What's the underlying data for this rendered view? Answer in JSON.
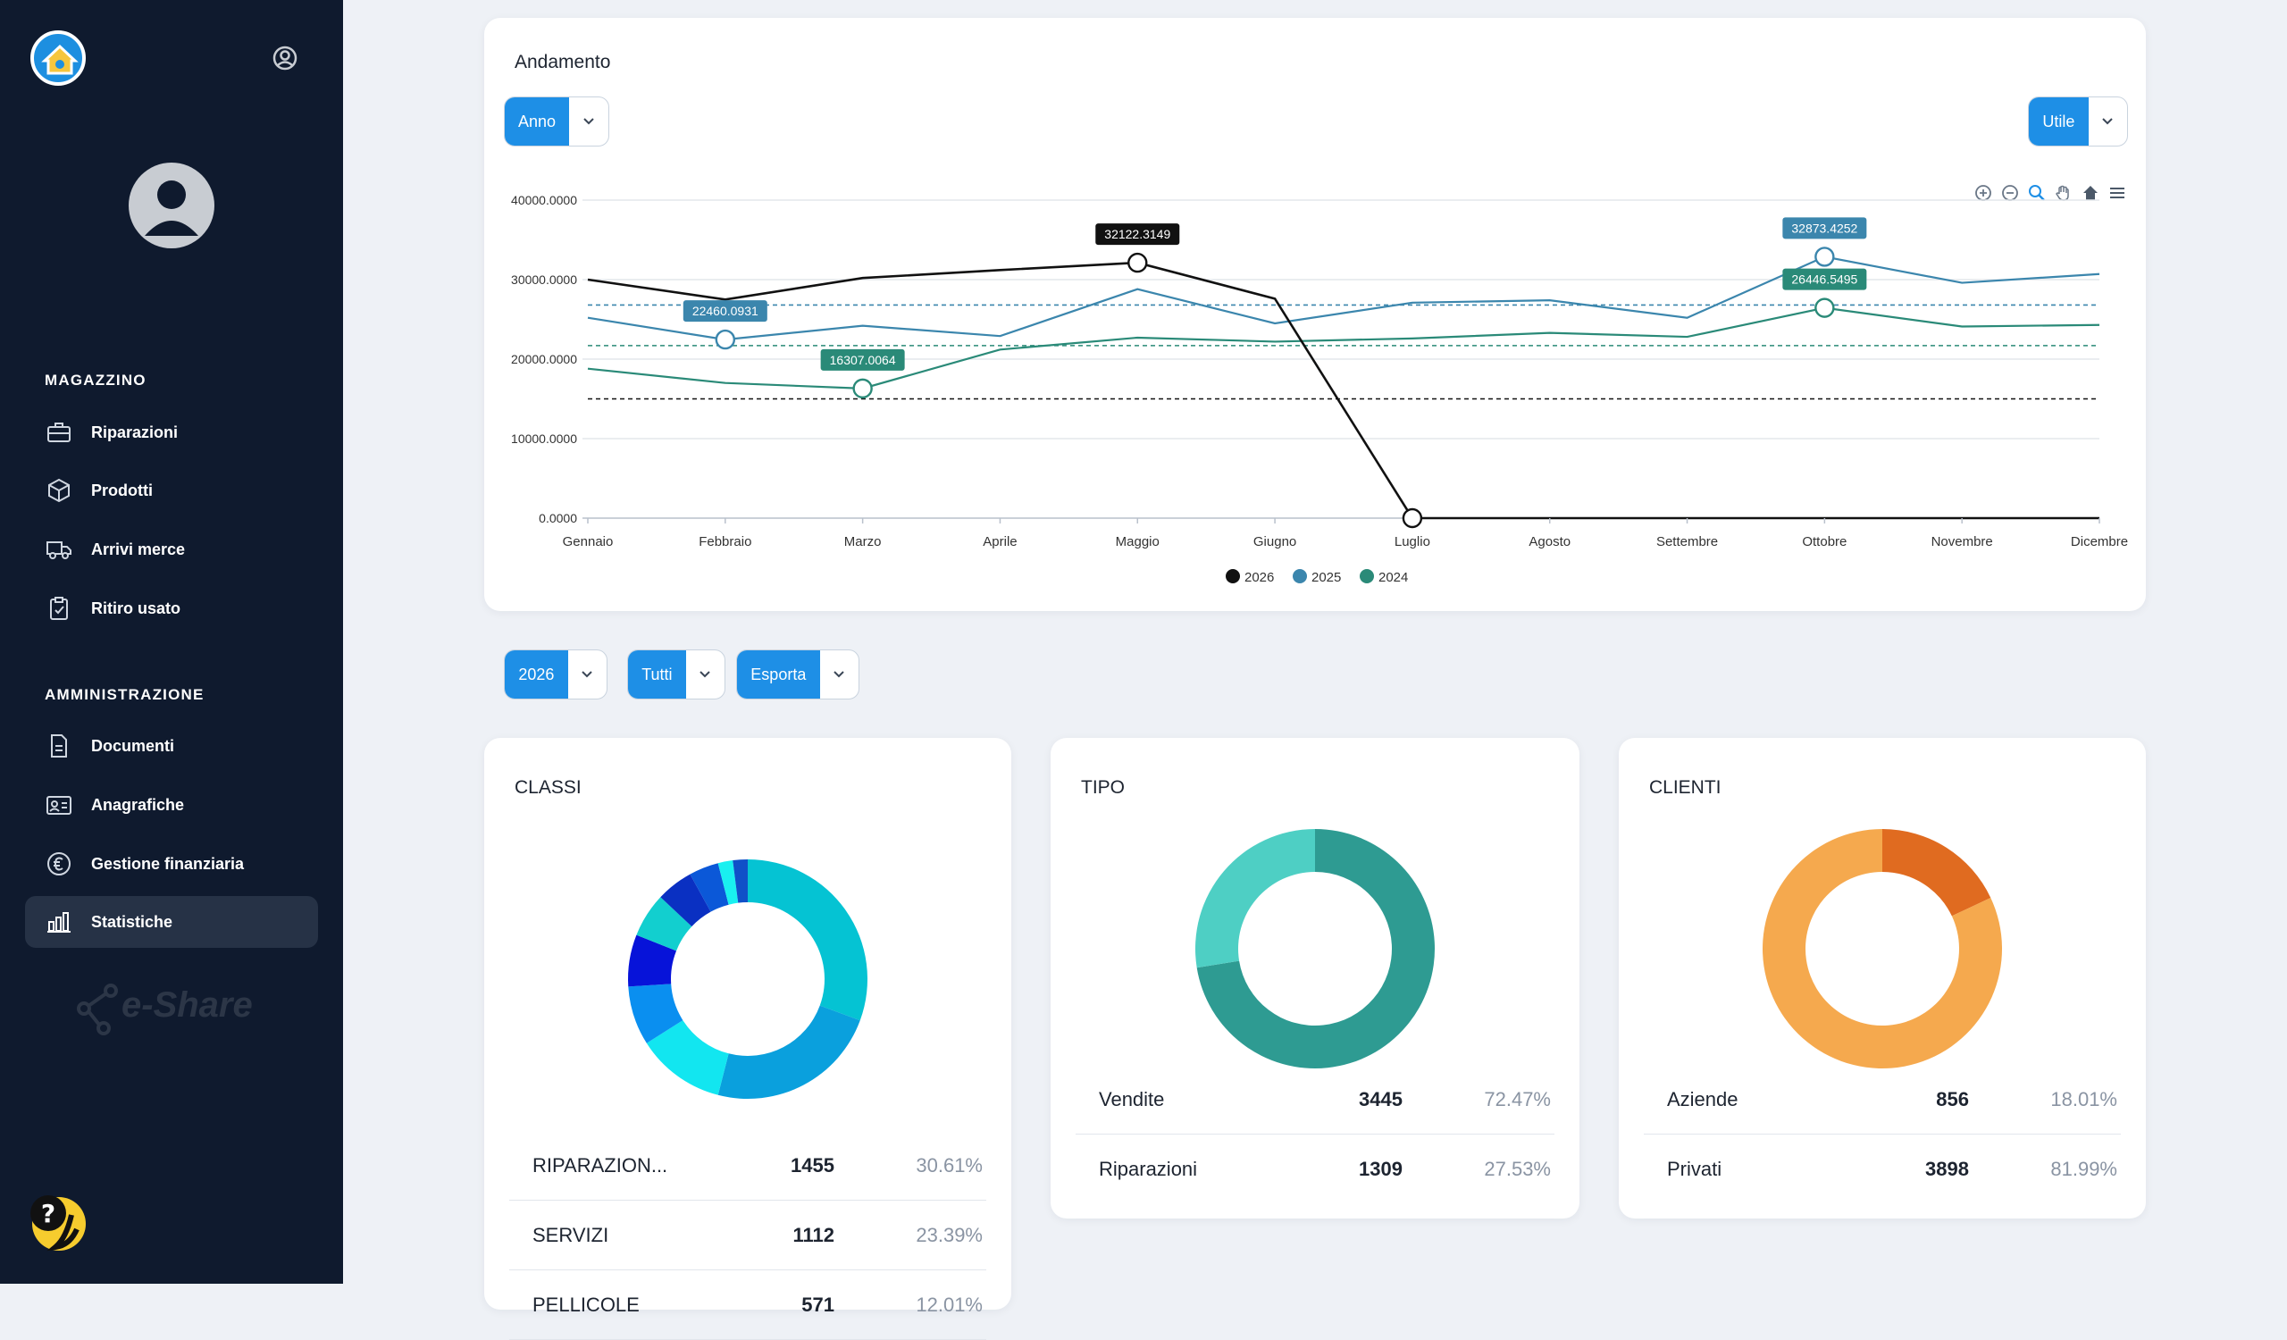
{
  "sidebar": {
    "section_magazzino": "MAGAZZINO",
    "section_amministrazione": "AMMINISTRAZIONE",
    "items": [
      {
        "label": "Riparazioni",
        "icon": "briefcase-icon"
      },
      {
        "label": "Prodotti",
        "icon": "box-icon"
      },
      {
        "label": "Arrivi merce",
        "icon": "truck-icon"
      },
      {
        "label": "Ritiro usato",
        "icon": "clipboard-icon"
      },
      {
        "label": "Documenti",
        "icon": "document-icon"
      },
      {
        "label": "Anagrafiche",
        "icon": "id-card-icon"
      },
      {
        "label": "Gestione finanziaria",
        "icon": "euro-icon"
      },
      {
        "label": "Statistiche",
        "icon": "bar-chart-icon",
        "active": true
      }
    ],
    "brand": "e-Share"
  },
  "trend": {
    "title": "Andamento",
    "period_button": "Anno",
    "metric_button": "Utile"
  },
  "filters": {
    "year": "2026",
    "scope": "Tutti",
    "export": "Esporta"
  },
  "classi": {
    "title": "CLASSI",
    "rows": [
      {
        "name": "RIPARAZION...",
        "count": "1455",
        "pct": "30.61%"
      },
      {
        "name": "SERVIZI",
        "count": "1112",
        "pct": "23.39%"
      },
      {
        "name": "PELLICOLE",
        "count": "571",
        "pct": "12.01%"
      }
    ]
  },
  "tipo": {
    "title": "TIPO",
    "rows": [
      {
        "name": "Vendite",
        "count": "3445",
        "pct": "72.47%"
      },
      {
        "name": "Riparazioni",
        "count": "1309",
        "pct": "27.53%"
      }
    ]
  },
  "clienti": {
    "title": "CLIENTI",
    "rows": [
      {
        "name": "Aziende",
        "count": "856",
        "pct": "18.01%"
      },
      {
        "name": "Privati",
        "count": "3898",
        "pct": "81.99%"
      }
    ]
  },
  "chart_data": [
    {
      "type": "line",
      "title": "Andamento",
      "categories": [
        "Gennaio",
        "Febbraio",
        "Marzo",
        "Aprile",
        "Maggio",
        "Giugno",
        "Luglio",
        "Agosto",
        "Settembre",
        "Ottobre",
        "Novembre",
        "Dicembre"
      ],
      "ylim": [
        0,
        40000
      ],
      "yticks": [
        "0.0000",
        "10000.0000",
        "20000.0000",
        "30000.0000",
        "40000.0000"
      ],
      "series": [
        {
          "name": "2026",
          "color": "#111111",
          "values": [
            30000,
            27500,
            30200,
            31200,
            32122.3149,
            27600,
            0,
            0,
            0,
            0,
            0,
            0
          ]
        },
        {
          "name": "2025",
          "color": "#3b86ad",
          "values": [
            25200,
            22460.0931,
            24200,
            22900,
            28800,
            24500,
            27100,
            27400,
            25200,
            32873.4252,
            29600,
            30700
          ]
        },
        {
          "name": "2024",
          "color": "#2a8a78",
          "values": [
            18800,
            17000,
            16307.0064,
            21200,
            22700,
            22200,
            22600,
            23300,
            22800,
            26446.5495,
            24100,
            24300
          ]
        }
      ],
      "reference_lines": [
        26800,
        21700,
        15000
      ],
      "annotations": [
        {
          "series": "2026",
          "x": "Maggio",
          "label": "32122.3149"
        },
        {
          "series": "2025",
          "x": "Febbraio",
          "label": "22460.0931"
        },
        {
          "series": "2024",
          "x": "Marzo",
          "label": "16307.0064"
        },
        {
          "series": "2025",
          "x": "Ottobre",
          "label": "32873.4252"
        },
        {
          "series": "2024",
          "x": "Ottobre",
          "label": "26446.5495"
        }
      ],
      "legend": "bottom-center",
      "grid": true
    },
    {
      "type": "pie",
      "title": "CLASSI",
      "values": [
        30.61,
        23.39,
        12.01,
        8,
        7,
        6,
        5,
        4,
        2,
        2
      ],
      "colors": [
        "#05c3d3",
        "#0aa0dd",
        "#12e6f0",
        "#0a8ff0",
        "#0713d9",
        "#12cfcf",
        "#0a30c2",
        "#0b58d8",
        "#19f0f0",
        "#1050c8"
      ]
    },
    {
      "type": "pie",
      "title": "TIPO",
      "labels": [
        "Vendite",
        "Riparazioni"
      ],
      "values": [
        72.47,
        27.53
      ],
      "colors": [
        "#2e9b92",
        "#4ecfc4"
      ]
    },
    {
      "type": "pie",
      "title": "CLIENTI",
      "labels": [
        "Aziende",
        "Privati"
      ],
      "values": [
        18.01,
        81.99
      ],
      "colors": [
        "#e06b20",
        "#f5a94e"
      ]
    }
  ]
}
